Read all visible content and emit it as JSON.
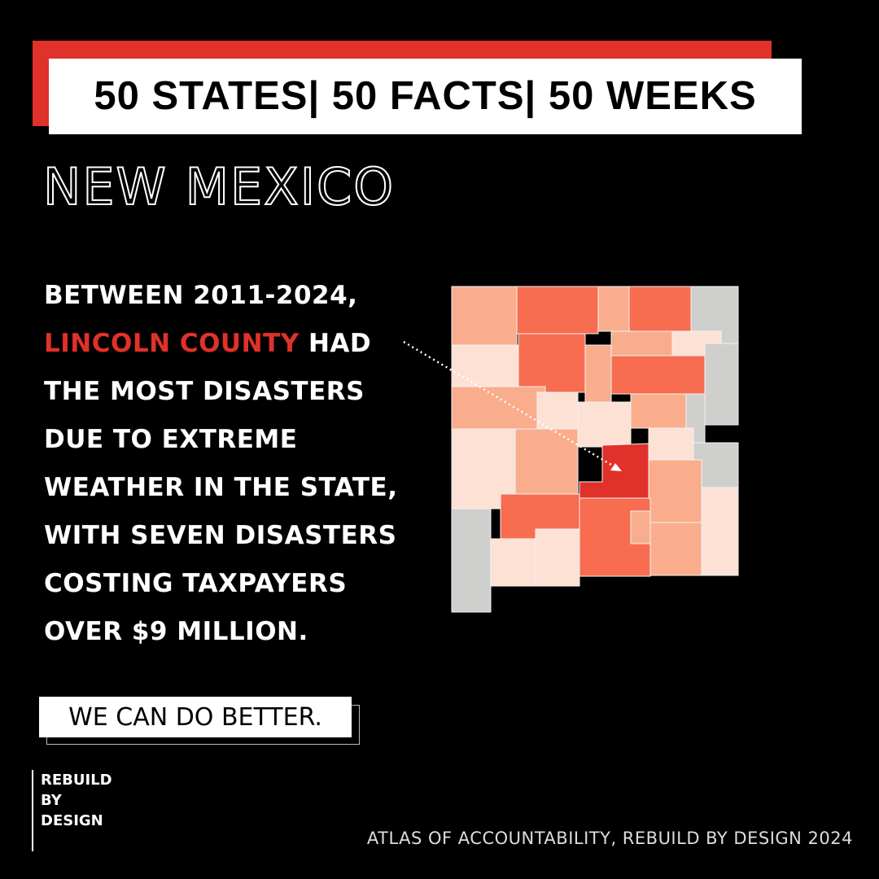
{
  "header": {
    "title": "50 STATES| 50 FACTS| 50 WEEKS"
  },
  "state": "NEW MEXICO",
  "body": {
    "line1": "BETWEEN 2011-2024,",
    "highlight": "LINCOLN COUNTY",
    "line2_rest": "HAD",
    "lines": [
      "THE MOST DISASTERS",
      "DUE TO EXTREME",
      "WEATHER IN THE STATE,",
      "WITH SEVEN DISASTERS",
      "COSTING TAXPAYERS",
      "OVER $9 MILLION."
    ]
  },
  "slogan": "WE CAN DO BETTER.",
  "logo": [
    "REBUILD",
    "BY",
    "DESIGN"
  ],
  "credit": "ATLAS OF ACCOUNTABILITY, REBUILD BY DESIGN 2024"
}
